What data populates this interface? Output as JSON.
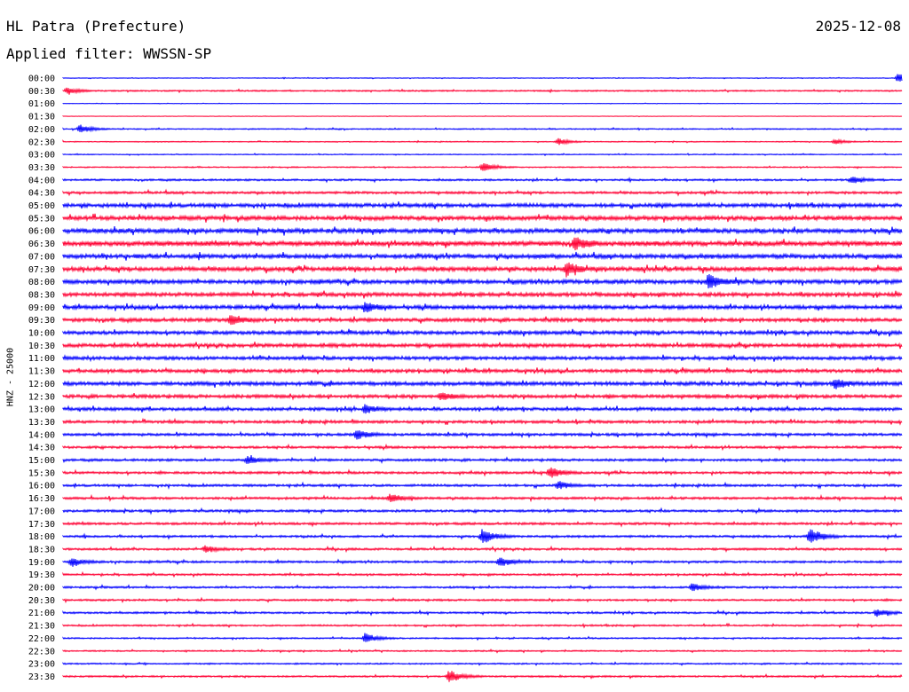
{
  "header": {
    "station": "HL Patra (Prefecture)",
    "date": "2025-12-08",
    "filter": "Applied filter: WWSSN-SP"
  },
  "chart_data": {
    "type": "line",
    "title": "HL Patra (Prefecture)",
    "ylabel": "HNZ - 25000",
    "colors": [
      "#0000ff",
      "#ff0033"
    ],
    "rows": [
      "00:00",
      "00:30",
      "01:00",
      "01:30",
      "02:00",
      "02:30",
      "03:00",
      "03:30",
      "04:00",
      "04:30",
      "05:00",
      "05:30",
      "06:00",
      "06:30",
      "07:00",
      "07:30",
      "08:00",
      "08:30",
      "09:00",
      "09:30",
      "10:00",
      "10:30",
      "11:00",
      "11:30",
      "12:00",
      "12:30",
      "13:00",
      "13:30",
      "14:00",
      "14:30",
      "15:00",
      "15:30",
      "16:00",
      "16:30",
      "17:00",
      "17:30",
      "18:00",
      "18:30",
      "19:00",
      "19:30",
      "20:00",
      "20:30",
      "21:00",
      "21:30",
      "22:00",
      "22:30",
      "23:00",
      "23:30"
    ],
    "noise_level": [
      0.3,
      0.6,
      0.2,
      0.2,
      0.5,
      0.4,
      0.4,
      0.5,
      0.8,
      1.0,
      1.6,
      1.8,
      1.9,
      2.0,
      1.8,
      1.8,
      1.7,
      1.6,
      1.6,
      1.5,
      1.5,
      1.5,
      1.4,
      1.4,
      1.6,
      1.4,
      1.3,
      1.2,
      1.1,
      1.0,
      1.0,
      1.0,
      1.0,
      1.0,
      1.0,
      1.0,
      0.9,
      0.9,
      0.9,
      0.8,
      0.8,
      0.8,
      0.8,
      0.7,
      0.6,
      0.6,
      0.6,
      0.7
    ],
    "events": [
      {
        "row": 0,
        "x": 0.995,
        "amp": 6
      },
      {
        "row": 1,
        "x": 0.005,
        "amp": 4
      },
      {
        "row": 4,
        "x": 0.02,
        "amp": 5
      },
      {
        "row": 5,
        "x": 0.59,
        "amp": 4
      },
      {
        "row": 5,
        "x": 0.92,
        "amp": 3
      },
      {
        "row": 7,
        "x": 0.5,
        "amp": 5
      },
      {
        "row": 8,
        "x": 0.94,
        "amp": 4
      },
      {
        "row": 13,
        "x": 0.61,
        "amp": 7
      },
      {
        "row": 15,
        "x": 0.6,
        "amp": 8
      },
      {
        "row": 16,
        "x": 0.77,
        "amp": 8
      },
      {
        "row": 18,
        "x": 0.36,
        "amp": 6
      },
      {
        "row": 19,
        "x": 0.2,
        "amp": 6
      },
      {
        "row": 24,
        "x": 0.92,
        "amp": 6
      },
      {
        "row": 25,
        "x": 0.45,
        "amp": 5
      },
      {
        "row": 26,
        "x": 0.36,
        "amp": 5
      },
      {
        "row": 28,
        "x": 0.35,
        "amp": 6
      },
      {
        "row": 30,
        "x": 0.22,
        "amp": 5
      },
      {
        "row": 31,
        "x": 0.58,
        "amp": 7
      },
      {
        "row": 32,
        "x": 0.59,
        "amp": 5
      },
      {
        "row": 33,
        "x": 0.39,
        "amp": 5
      },
      {
        "row": 36,
        "x": 0.5,
        "amp": 9
      },
      {
        "row": 36,
        "x": 0.89,
        "amp": 10
      },
      {
        "row": 37,
        "x": 0.17,
        "amp": 4
      },
      {
        "row": 38,
        "x": 0.01,
        "amp": 5
      },
      {
        "row": 38,
        "x": 0.52,
        "amp": 6
      },
      {
        "row": 40,
        "x": 0.75,
        "amp": 5
      },
      {
        "row": 42,
        "x": 0.97,
        "amp": 5
      },
      {
        "row": 44,
        "x": 0.36,
        "amp": 6
      },
      {
        "row": 47,
        "x": 0.46,
        "amp": 8
      }
    ]
  }
}
